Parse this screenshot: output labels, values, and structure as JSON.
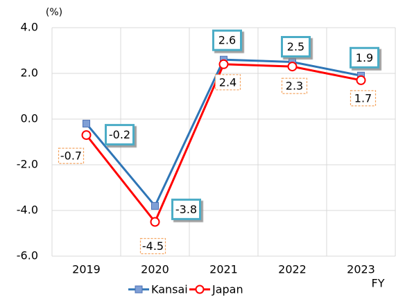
{
  "chart_data": {
    "type": "line",
    "y_unit": "(%)",
    "x_label": "FY",
    "categories": [
      "2019",
      "2020",
      "2021",
      "2022",
      "2023"
    ],
    "series": [
      {
        "name": "Kansai",
        "color": "#2e75b6",
        "values": [
          -0.2,
          -3.8,
          2.6,
          2.5,
          1.9
        ]
      },
      {
        "name": "Japan",
        "color": "#ff0000",
        "values": [
          -0.7,
          -4.5,
          2.4,
          2.3,
          1.7
        ]
      }
    ],
    "ylim": [
      -6,
      4
    ],
    "yticks": [
      {
        "value": -6,
        "label": "-6.0"
      },
      {
        "value": -4,
        "label": "-4.0"
      },
      {
        "value": -2,
        "label": "-2.0"
      },
      {
        "value": 0,
        "label": "0.0"
      },
      {
        "value": 2,
        "label": "2.0"
      },
      {
        "value": 4,
        "label": "4.0"
      }
    ],
    "grid": true
  }
}
